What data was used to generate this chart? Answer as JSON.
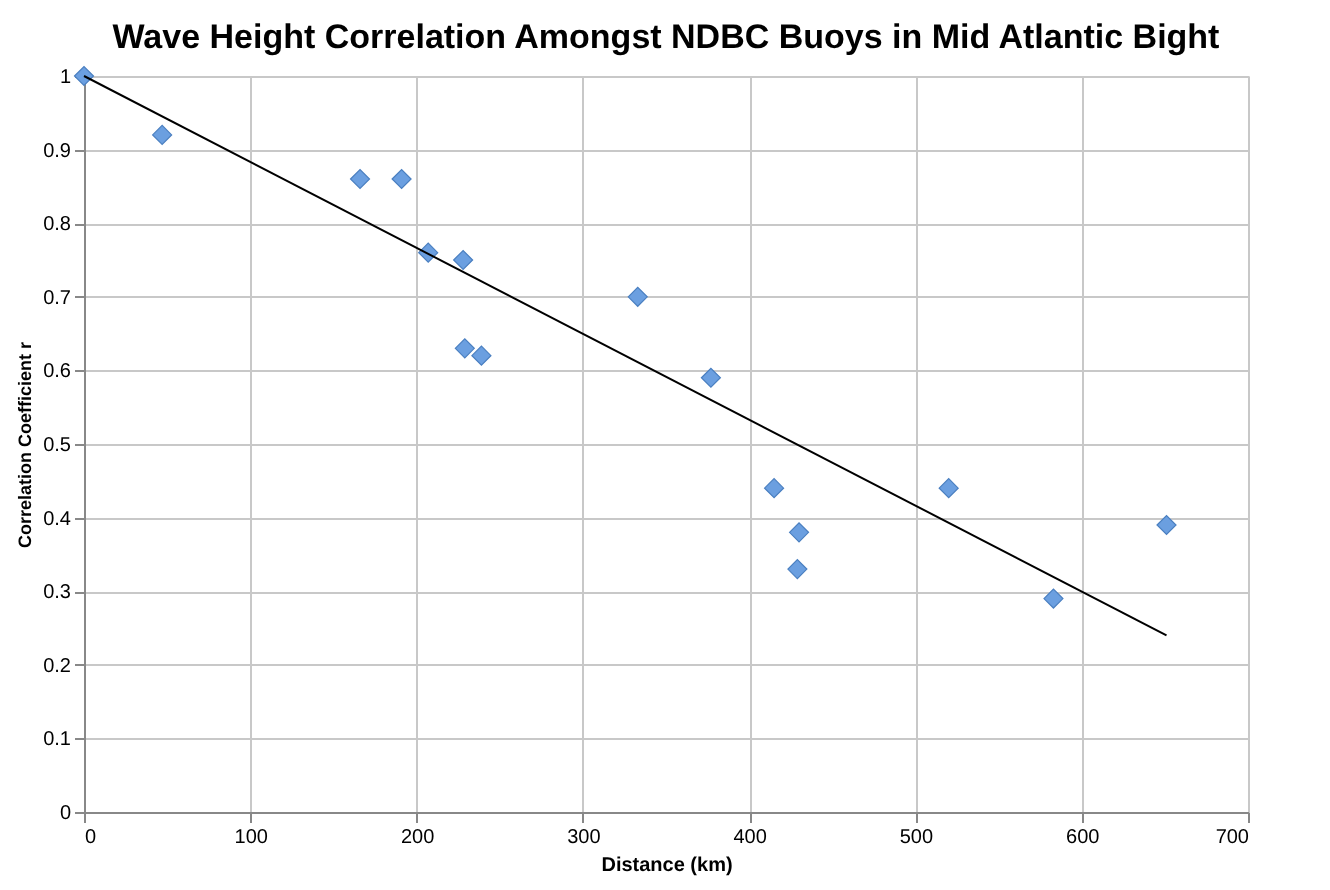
{
  "chart_data": {
    "type": "scatter",
    "title": "Wave Height Correlation Amongst NDBC Buoys in Mid Atlantic Bight",
    "xlabel": "Distance (km)",
    "ylabel": "Correlation Coefficient r",
    "xlim": [
      0,
      700
    ],
    "ylim": [
      0,
      1
    ],
    "xticks": [
      0,
      100,
      200,
      300,
      400,
      500,
      600,
      700
    ],
    "yticks": [
      0,
      0.1,
      0.2,
      0.3,
      0.4,
      0.5,
      0.6,
      0.7,
      0.8,
      0.9,
      1
    ],
    "grid": true,
    "marker": "diamond",
    "series": [
      {
        "color": "#6b9fe0",
        "x": [
          0,
          47,
          166,
          191,
          207,
          228,
          229,
          239,
          333,
          377,
          415,
          430,
          429,
          520,
          583,
          651
        ],
        "values": [
          1.0,
          0.92,
          0.86,
          0.86,
          0.76,
          0.75,
          0.63,
          0.62,
          0.7,
          0.59,
          0.44,
          0.38,
          0.33,
          0.44,
          0.29,
          0.39
        ]
      },
      {
        "type": "line",
        "color": "#000000",
        "x": [
          0,
          651
        ],
        "values": [
          1.0,
          0.24
        ],
        "marker": "none",
        "line_style": "solid"
      }
    ]
  }
}
